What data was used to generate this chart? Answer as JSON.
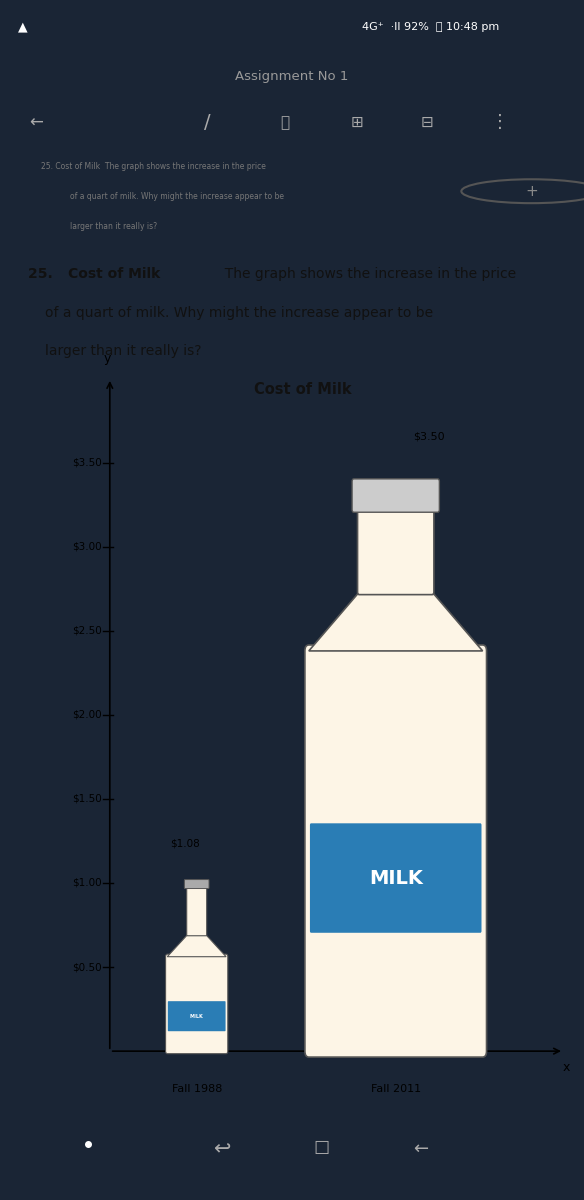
{
  "title": "Cost of Milk",
  "assignment": "Assignment No 1",
  "yticks": [
    "$0.50",
    "$1.00",
    "$1.50",
    "$2.00",
    "$2.50",
    "$3.00",
    "$3.50"
  ],
  "ytick_vals": [
    0.5,
    1.0,
    1.5,
    2.0,
    2.5,
    3.0,
    3.5
  ],
  "ylim_max": 3.8,
  "xlabel_1": "Fall 1988",
  "xlabel_2": "Fall 2011",
  "price_1988": "$1.08",
  "price_2011": "$3.50",
  "val_1988": 1.08,
  "val_2011": 3.5,
  "bg_color_top": "#2355a0",
  "bg_color_dark": "#1a2535",
  "bg_color_white": "#ffffff",
  "bottle_fill_color": "#fdf5e6",
  "bottle_outline_color": "#555555",
  "label_band_color": "#2a7db5",
  "label_text_color": "#ffffff",
  "text_color_dark": "#111111",
  "thumb_text_color": "#777777",
  "nav_icon_color": "#aaaaaa",
  "cap_color": "#cccccc",
  "neck_line_color": "#aaaaaa"
}
